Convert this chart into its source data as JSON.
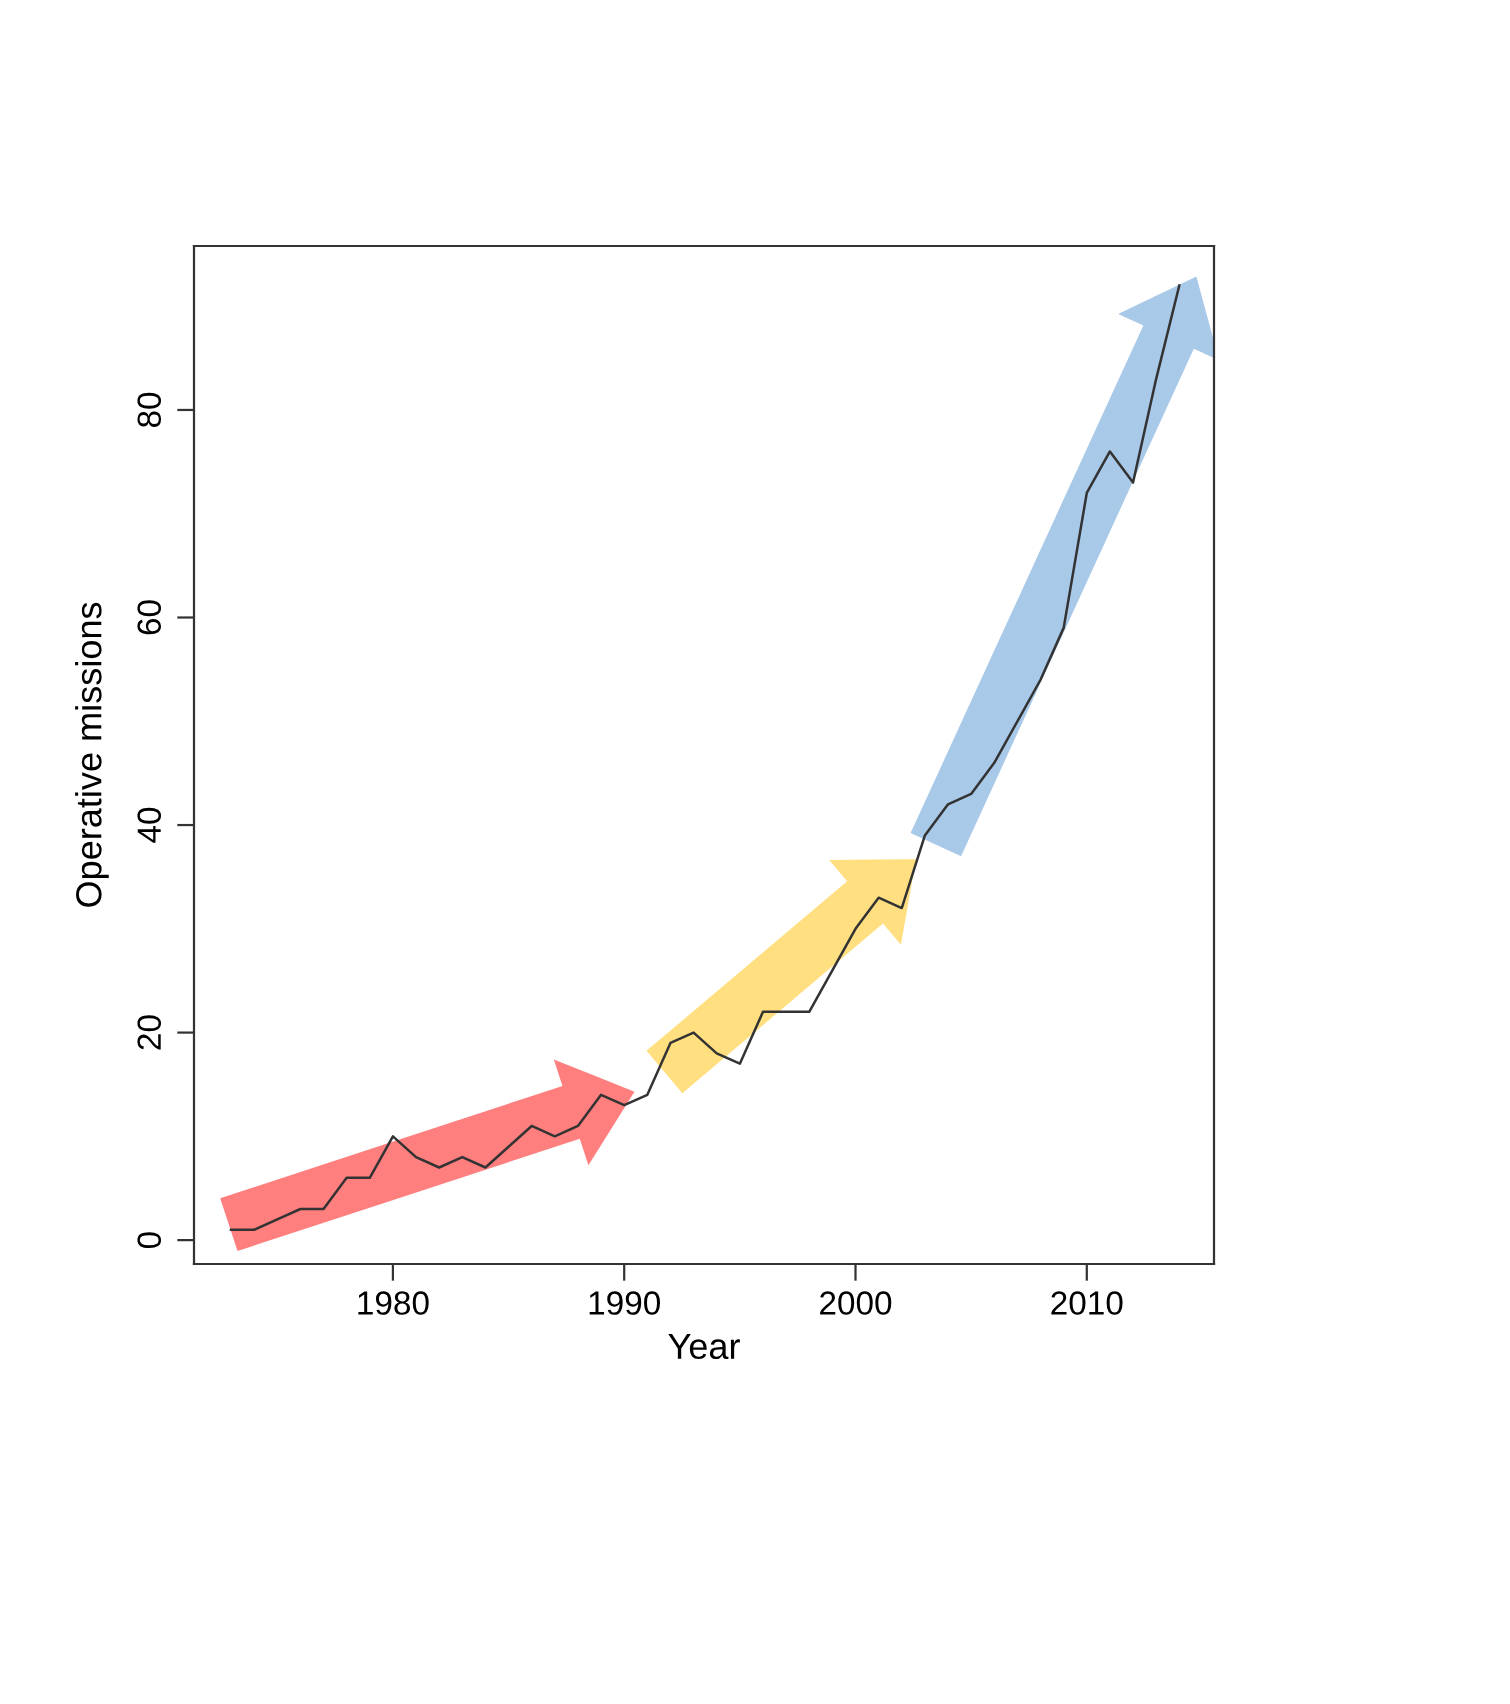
{
  "chart_data": {
    "type": "line",
    "xlabel": "Year",
    "ylabel": "Operative missions",
    "x": [
      1973,
      1974,
      1975,
      1976,
      1977,
      1978,
      1979,
      1980,
      1981,
      1982,
      1983,
      1984,
      1985,
      1986,
      1987,
      1988,
      1989,
      1990,
      1991,
      1992,
      1993,
      1994,
      1995,
      1996,
      1997,
      1998,
      1999,
      2000,
      2001,
      2002,
      2003,
      2004,
      2005,
      2006,
      2007,
      2008,
      2009,
      2010,
      2011,
      2012,
      2013,
      2014
    ],
    "series": [
      {
        "color": "#333333",
        "values": [
          1,
          1,
          2,
          3,
          3,
          6,
          6,
          10,
          8,
          7,
          8,
          7,
          9,
          11,
          10,
          11,
          14,
          13,
          14,
          19,
          20,
          18,
          17,
          22,
          22,
          22,
          26,
          30,
          33,
          32,
          39,
          42,
          43,
          46,
          50,
          54,
          59,
          72,
          76,
          73,
          83,
          92
        ]
      }
    ],
    "xlim": [
      1971.4,
      2015.5
    ],
    "ylim": [
      -2.3,
      95.8
    ],
    "xticks": [
      1980,
      1990,
      2000,
      2010
    ],
    "yticks": [
      0,
      20,
      40,
      60,
      80
    ],
    "grid": false,
    "legend": false,
    "marker": "none",
    "line_style": "solid"
  }
}
